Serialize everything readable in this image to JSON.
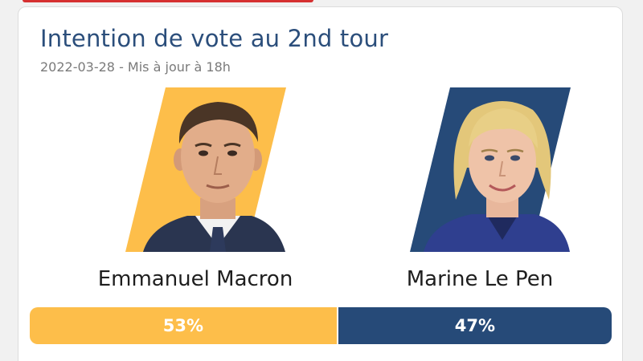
{
  "poll": {
    "title": "Intention de vote au 2nd tour",
    "subtitle": "2022-03-28 - Mis à jour à 18h"
  },
  "candidates": [
    {
      "name": "Emmanuel Macron",
      "share": 53,
      "share_label": "53%",
      "color": "#fdbe4a",
      "portrait": "portrait-emmanuel-macron"
    },
    {
      "name": "Marine Le Pen",
      "share": 47,
      "share_label": "47%",
      "color": "#264a78",
      "portrait": "portrait-marine-le-pen"
    }
  ],
  "colors": {
    "title": "#2b4e7b",
    "alert_strip": "#d63031"
  }
}
